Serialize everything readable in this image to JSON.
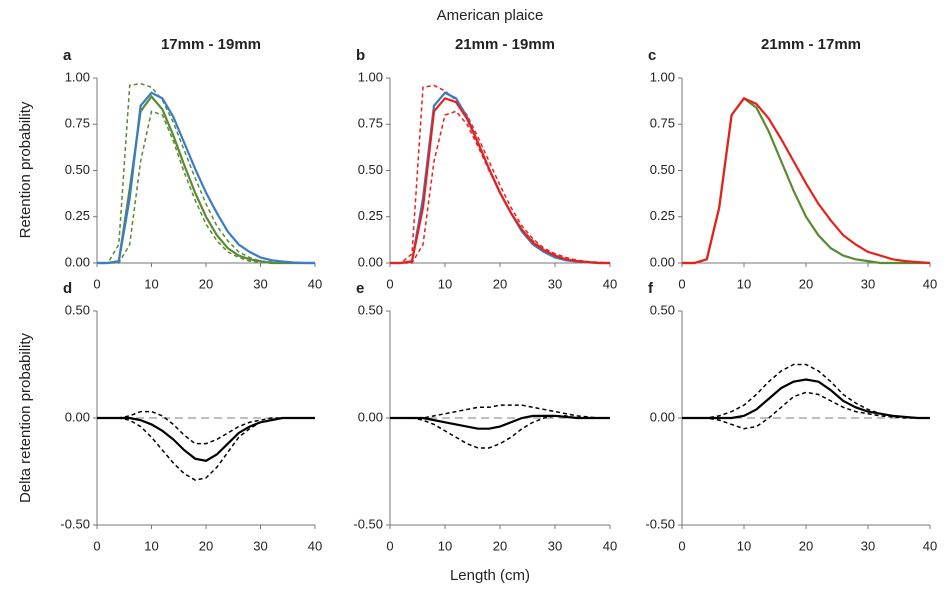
{
  "title": "American plaice",
  "xlabel": "Length (cm)",
  "ylabel_top": "Retention probability",
  "ylabel_bottom": "Delta retention probability",
  "chart_data": [
    {
      "type": "line",
      "label": "a",
      "title": "17mm - 19mm",
      "x": [
        0,
        2,
        4,
        6,
        8,
        10,
        12,
        14,
        16,
        18,
        20,
        22,
        24,
        26,
        28,
        30,
        32,
        34,
        36,
        38,
        40
      ],
      "series": [
        {
          "color": "#5a8a32",
          "dash": true,
          "values": [
            0,
            0,
            0.1,
            0.96,
            0.97,
            0.95,
            0.88,
            0.76,
            0.61,
            0.46,
            0.32,
            0.2,
            0.12,
            0.06,
            0.03,
            0.01,
            0.005,
            0,
            0,
            0,
            0
          ]
        },
        {
          "color": "#5a8a32",
          "dash": true,
          "values": [
            0,
            0,
            0,
            0.1,
            0.55,
            0.82,
            0.8,
            0.66,
            0.49,
            0.34,
            0.21,
            0.12,
            0.06,
            0.03,
            0.01,
            0.005,
            0,
            0,
            0,
            0,
            0
          ]
        },
        {
          "color": "#5a8a32",
          "dash": false,
          "values": [
            0,
            0,
            0.01,
            0.4,
            0.82,
            0.9,
            0.83,
            0.69,
            0.53,
            0.38,
            0.25,
            0.15,
            0.08,
            0.04,
            0.02,
            0.01,
            0,
            0,
            0,
            0,
            0
          ]
        },
        {
          "color": "#3a7dc6",
          "dash": false,
          "values": [
            0,
            0,
            0.01,
            0.35,
            0.85,
            0.92,
            0.89,
            0.79,
            0.65,
            0.51,
            0.38,
            0.27,
            0.17,
            0.1,
            0.06,
            0.03,
            0.015,
            0.008,
            0.003,
            0,
            0
          ]
        }
      ],
      "xlim": [
        0,
        40
      ],
      "xticks": [
        0,
        10,
        20,
        30,
        40
      ],
      "ylim": [
        0,
        1
      ],
      "yticks": [
        {
          "value": 0,
          "label": "0.00"
        },
        {
          "value": 0.25,
          "label": "0.25"
        },
        {
          "value": 0.5,
          "label": "0.50"
        },
        {
          "value": 0.75,
          "label": "0.75"
        },
        {
          "value": 1,
          "label": "1.00"
        }
      ]
    },
    {
      "type": "line",
      "label": "b",
      "title": "21mm - 19mm",
      "x": [
        0,
        2,
        4,
        6,
        8,
        10,
        12,
        14,
        16,
        18,
        20,
        22,
        24,
        26,
        28,
        30,
        32,
        34,
        36,
        38,
        40
      ],
      "series": [
        {
          "color": "#e8201c",
          "dash": true,
          "values": [
            0,
            0,
            0.05,
            0.95,
            0.96,
            0.93,
            0.88,
            0.8,
            0.68,
            0.55,
            0.42,
            0.3,
            0.2,
            0.13,
            0.08,
            0.05,
            0.03,
            0.015,
            0.008,
            0.004,
            0
          ]
        },
        {
          "color": "#e8201c",
          "dash": true,
          "values": [
            0,
            0,
            0,
            0.1,
            0.55,
            0.8,
            0.82,
            0.75,
            0.63,
            0.5,
            0.38,
            0.27,
            0.18,
            0.12,
            0.07,
            0.04,
            0.02,
            0.01,
            0.005,
            0,
            0
          ]
        },
        {
          "color": "#3a7dc6",
          "dash": false,
          "values": [
            0,
            0,
            0.01,
            0.35,
            0.85,
            0.92,
            0.89,
            0.79,
            0.65,
            0.51,
            0.38,
            0.27,
            0.17,
            0.1,
            0.06,
            0.03,
            0.015,
            0.008,
            0.003,
            0,
            0
          ]
        },
        {
          "color": "#e8201c",
          "dash": false,
          "values": [
            0,
            0,
            0.01,
            0.3,
            0.82,
            0.89,
            0.87,
            0.78,
            0.65,
            0.51,
            0.38,
            0.27,
            0.18,
            0.11,
            0.07,
            0.04,
            0.02,
            0.01,
            0.005,
            0,
            0
          ]
        }
      ],
      "xlim": [
        0,
        40
      ],
      "xticks": [
        0,
        10,
        20,
        30,
        40
      ],
      "ylim": [
        0,
        1
      ],
      "yticks": [
        {
          "value": 0,
          "label": "0.00"
        },
        {
          "value": 0.25,
          "label": "0.25"
        },
        {
          "value": 0.5,
          "label": "0.50"
        },
        {
          "value": 0.75,
          "label": "0.75"
        },
        {
          "value": 1,
          "label": "1.00"
        }
      ]
    },
    {
      "type": "line",
      "label": "c",
      "title": "21mm - 17mm",
      "x": [
        0,
        2,
        4,
        6,
        8,
        10,
        12,
        14,
        16,
        18,
        20,
        22,
        24,
        26,
        28,
        30,
        32,
        34,
        36,
        38,
        40
      ],
      "series": [
        {
          "color": "#5a8a32",
          "dash": false,
          "values": [
            0,
            0,
            0.02,
            0.3,
            0.8,
            0.89,
            0.84,
            0.71,
            0.55,
            0.39,
            0.25,
            0.15,
            0.08,
            0.04,
            0.02,
            0.01,
            0,
            0,
            0,
            0,
            0
          ]
        },
        {
          "color": "#e8201c",
          "dash": false,
          "values": [
            0,
            0,
            0.02,
            0.3,
            0.8,
            0.89,
            0.86,
            0.78,
            0.67,
            0.55,
            0.43,
            0.32,
            0.23,
            0.15,
            0.1,
            0.06,
            0.04,
            0.02,
            0.01,
            0.005,
            0
          ]
        }
      ],
      "xlim": [
        0,
        40
      ],
      "xticks": [
        0,
        10,
        20,
        30,
        40
      ],
      "ylim": [
        0,
        1
      ],
      "yticks": [
        {
          "value": 0,
          "label": "0.00"
        },
        {
          "value": 0.25,
          "label": "0.25"
        },
        {
          "value": 0.5,
          "label": "0.50"
        },
        {
          "value": 0.75,
          "label": "0.75"
        },
        {
          "value": 1,
          "label": "1.00"
        }
      ]
    },
    {
      "type": "line",
      "label": "d",
      "zero_line": true,
      "x": [
        0,
        2,
        4,
        6,
        8,
        10,
        12,
        14,
        16,
        18,
        20,
        22,
        24,
        26,
        28,
        30,
        32,
        34,
        36,
        38,
        40
      ],
      "series": [
        {
          "color": "#000000",
          "dash": true,
          "values": [
            0,
            0,
            0,
            0.01,
            0.03,
            0.03,
            0.01,
            -0.03,
            -0.08,
            -0.12,
            -0.12,
            -0.1,
            -0.07,
            -0.04,
            -0.02,
            -0.01,
            0,
            0,
            0,
            0,
            0
          ]
        },
        {
          "color": "#000000",
          "dash": true,
          "values": [
            0,
            0,
            0,
            -0.01,
            -0.04,
            -0.09,
            -0.15,
            -0.21,
            -0.26,
            -0.29,
            -0.28,
            -0.23,
            -0.16,
            -0.09,
            -0.05,
            -0.02,
            -0.01,
            0,
            0,
            0,
            0
          ]
        },
        {
          "color": "#000000",
          "dash": false,
          "values": [
            0,
            0,
            0,
            0,
            -0.01,
            -0.03,
            -0.06,
            -0.1,
            -0.15,
            -0.19,
            -0.2,
            -0.17,
            -0.12,
            -0.07,
            -0.04,
            -0.02,
            -0.01,
            0,
            0,
            0,
            0
          ]
        }
      ],
      "xlim": [
        0,
        40
      ],
      "xticks": [
        0,
        10,
        20,
        30,
        40
      ],
      "ylim": [
        -0.5,
        0.5
      ],
      "yticks": [
        {
          "value": -0.5,
          "label": "-0.50"
        },
        {
          "value": 0,
          "label": "0.00"
        },
        {
          "value": 0.5,
          "label": "0.50"
        }
      ]
    },
    {
      "type": "line",
      "label": "e",
      "zero_line": true,
      "x": [
        0,
        2,
        4,
        6,
        8,
        10,
        12,
        14,
        16,
        18,
        20,
        22,
        24,
        26,
        28,
        30,
        32,
        34,
        36,
        38,
        40
      ],
      "series": [
        {
          "color": "#000000",
          "dash": true,
          "values": [
            0,
            0,
            0,
            0,
            0.01,
            0.02,
            0.03,
            0.04,
            0.05,
            0.05,
            0.06,
            0.06,
            0.06,
            0.05,
            0.04,
            0.03,
            0.02,
            0.01,
            0.005,
            0,
            0
          ]
        },
        {
          "color": "#000000",
          "dash": true,
          "values": [
            0,
            0,
            0,
            -0.01,
            -0.03,
            -0.06,
            -0.09,
            -0.12,
            -0.14,
            -0.14,
            -0.12,
            -0.09,
            -0.05,
            -0.02,
            0,
            0.01,
            0.01,
            0,
            0,
            0,
            0
          ]
        },
        {
          "color": "#000000",
          "dash": false,
          "values": [
            0,
            0,
            0,
            0,
            -0.01,
            -0.02,
            -0.03,
            -0.04,
            -0.05,
            -0.05,
            -0.04,
            -0.02,
            0,
            0.01,
            0.01,
            0.01,
            0.005,
            0,
            0,
            0,
            0
          ]
        }
      ],
      "xlim": [
        0,
        40
      ],
      "xticks": [
        0,
        10,
        20,
        30,
        40
      ],
      "ylim": [
        -0.5,
        0.5
      ],
      "yticks": [
        {
          "value": -0.5,
          "label": "-0.50"
        },
        {
          "value": 0,
          "label": "0.00"
        },
        {
          "value": 0.5,
          "label": "0.50"
        }
      ]
    },
    {
      "type": "line",
      "label": "f",
      "zero_line": true,
      "x": [
        0,
        2,
        4,
        6,
        8,
        10,
        12,
        14,
        16,
        18,
        20,
        22,
        24,
        26,
        28,
        30,
        32,
        34,
        36,
        38,
        40
      ],
      "series": [
        {
          "color": "#000000",
          "dash": true,
          "values": [
            0,
            0,
            0,
            0.01,
            0.03,
            0.06,
            0.11,
            0.17,
            0.22,
            0.25,
            0.25,
            0.22,
            0.17,
            0.11,
            0.07,
            0.04,
            0.02,
            0.01,
            0.005,
            0,
            0
          ]
        },
        {
          "color": "#000000",
          "dash": true,
          "values": [
            0,
            0,
            0,
            -0.01,
            -0.03,
            -0.05,
            -0.04,
            0,
            0.05,
            0.1,
            0.12,
            0.11,
            0.08,
            0.05,
            0.03,
            0.02,
            0.01,
            0.005,
            0,
            0,
            0
          ]
        },
        {
          "color": "#000000",
          "dash": false,
          "values": [
            0,
            0,
            0,
            0,
            0,
            0.01,
            0.04,
            0.09,
            0.14,
            0.17,
            0.18,
            0.17,
            0.13,
            0.08,
            0.05,
            0.03,
            0.02,
            0.01,
            0.005,
            0,
            0
          ]
        }
      ],
      "xlim": [
        0,
        40
      ],
      "xticks": [
        0,
        10,
        20,
        30,
        40
      ],
      "ylim": [
        -0.5,
        0.5
      ],
      "yticks": [
        {
          "value": -0.5,
          "label": "-0.50"
        },
        {
          "value": 0,
          "label": "0.00"
        },
        {
          "value": 0.5,
          "label": "0.50"
        }
      ]
    }
  ]
}
